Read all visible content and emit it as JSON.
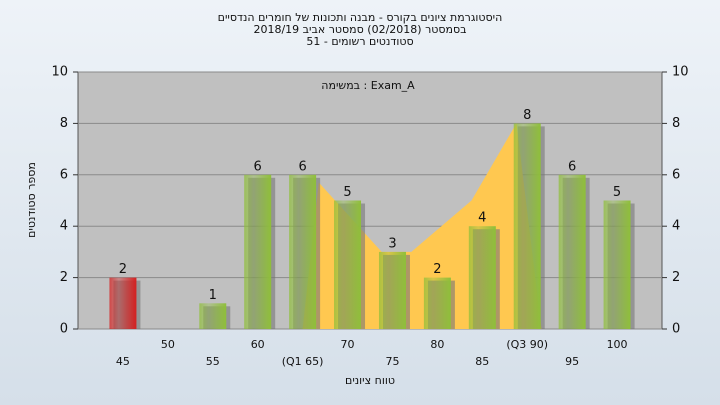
{
  "chart_data": {
    "type": "bar",
    "title": [
      "היסטוגרמת ציונים בקורס - מבנה ותכונות של חומרים הנדסיים",
      "בסמסטר (02/2018) סמסטר אביב 2018/19",
      "סטודנטים רשומים - 51"
    ],
    "annotation": "במשימה : Exam_A",
    "xlabel": "טווח ציונים",
    "ylabel": "מספר סטודנטים",
    "x": [
      45,
      50,
      55,
      60,
      65,
      70,
      75,
      80,
      85,
      90,
      95,
      100
    ],
    "values": [
      2,
      0,
      1,
      6,
      6,
      5,
      3,
      2,
      4,
      8,
      6,
      5
    ],
    "colors": [
      "#d42020",
      "#8fbf3a",
      "#8fbf3a",
      "#8fbf3a",
      "#8fbf3a",
      "#8fbf3a",
      "#8fbf3a",
      "#8fbf3a",
      "#8fbf3a",
      "#8fbf3a",
      "#8fbf3a",
      "#8fbf3a"
    ],
    "area": {
      "color": "#ffc850",
      "x": [
        65,
        66.8,
        73.8,
        77.1,
        83.8,
        88.8,
        91.6
      ],
      "values": [
        0,
        5.7,
        3,
        3,
        5,
        8,
        0
      ]
    },
    "xlim": [
      40,
      105
    ],
    "xticks": [
      45,
      50,
      55,
      60,
      {
        "value": 65,
        "label": "(Q1 65)"
      },
      70,
      75,
      80,
      85,
      {
        "value": 90,
        "label": "(Q3 90)"
      },
      95,
      100
    ],
    "ylim": [
      0,
      10
    ],
    "yticks": [
      0,
      2,
      4,
      6,
      8,
      10
    ],
    "y2lim": [
      0,
      10
    ],
    "y2ticks": [
      0,
      2,
      4,
      6,
      8,
      10
    ],
    "grid": true
  }
}
